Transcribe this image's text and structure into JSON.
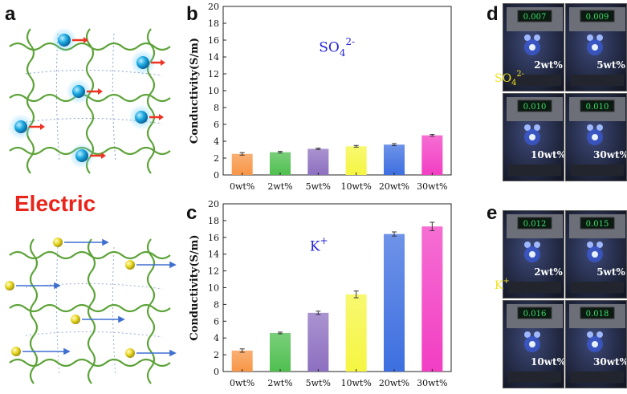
{
  "panels": {
    "a": "a",
    "b": "b",
    "c": "c",
    "d": "d",
    "e": "e"
  },
  "electric_label": "Electric",
  "chart_data": [
    {
      "panel": "b",
      "type": "bar",
      "annotation": "SO42-",
      "annotation_parts": {
        "base": "SO",
        "sub": "4",
        "sup": "2-"
      },
      "categories": [
        "0wt%",
        "2wt%",
        "5wt%",
        "10wt%",
        "20wt%",
        "30wt%"
      ],
      "values": [
        2.5,
        2.7,
        3.1,
        3.4,
        3.6,
        4.7
      ],
      "errors": [
        0.15,
        0.1,
        0.08,
        0.1,
        0.12,
        0.1
      ],
      "ylabel": "Conductivity(S/m)",
      "ylim": [
        0,
        20
      ],
      "yticks": [
        0,
        2,
        4,
        6,
        8,
        10,
        12,
        14,
        16,
        18,
        20
      ],
      "colors": [
        "#f79646",
        "#4fbf4f",
        "#8d6fc0",
        "#f5f542",
        "#3d6fe0",
        "#f23ec3"
      ]
    },
    {
      "panel": "c",
      "type": "bar",
      "annotation": "K+",
      "annotation_parts": {
        "base": "K",
        "sub": "",
        "sup": "+"
      },
      "categories": [
        "0wt%",
        "2wt%",
        "5wt%",
        "10wt%",
        "20wt%",
        "30wt%"
      ],
      "values": [
        2.5,
        4.6,
        7.0,
        9.2,
        16.4,
        17.3
      ],
      "errors": [
        0.2,
        0.1,
        0.2,
        0.4,
        0.25,
        0.5
      ],
      "ylabel": "Conductivity(S/m)",
      "ylim": [
        0,
        20
      ],
      "yticks": [
        0,
        2,
        4,
        6,
        8,
        10,
        12,
        14,
        16,
        18,
        20
      ],
      "colors": [
        "#f79646",
        "#4fbf4f",
        "#8d6fc0",
        "#f5f542",
        "#3d6fe0",
        "#f23ec3"
      ]
    }
  ],
  "photos_d": {
    "ion_label": {
      "base": "SO",
      "sub": "4",
      "sup": "2-"
    },
    "items": [
      {
        "label": "2wt%",
        "display": "0.007"
      },
      {
        "label": "5wt%",
        "display": "0.009"
      },
      {
        "label": "10wt%",
        "display": "0.010"
      },
      {
        "label": "30wt%",
        "display": "0.010"
      }
    ]
  },
  "photos_e": {
    "ion_label": {
      "base": "K",
      "sub": "",
      "sup": "+"
    },
    "items": [
      {
        "label": "2wt%",
        "display": "0.012"
      },
      {
        "label": "5wt%",
        "display": "0.015"
      },
      {
        "label": "10wt%",
        "display": "0.016"
      },
      {
        "label": "30wt%",
        "display": "0.018"
      }
    ]
  }
}
